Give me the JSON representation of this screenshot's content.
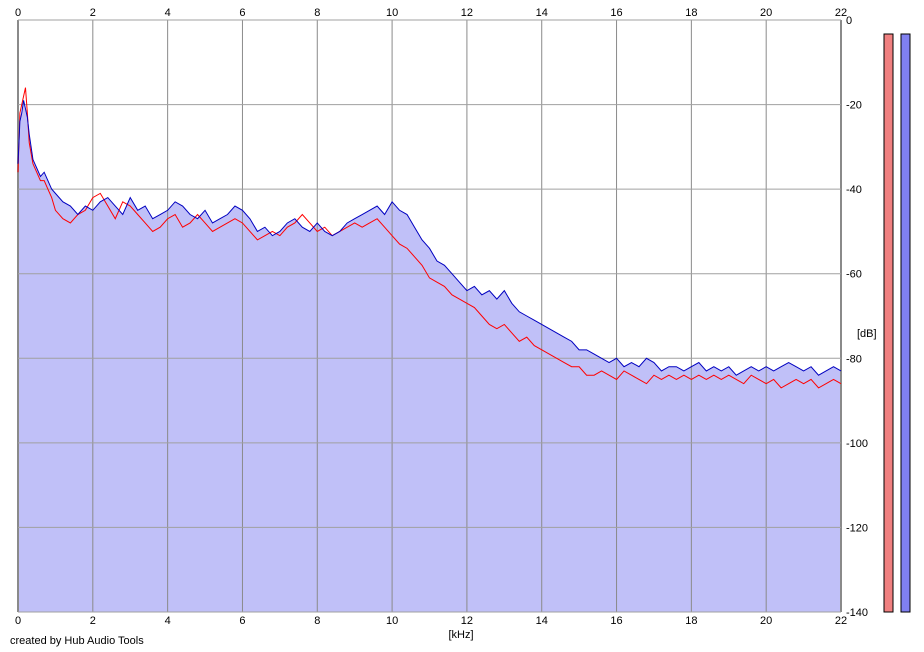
{
  "chart_data": {
    "type": "line",
    "title": "",
    "xlabel": "[kHz]",
    "ylabel": "[dB]",
    "xlim": [
      0,
      22
    ],
    "ylim": [
      -140,
      0
    ],
    "x_ticks": [
      0,
      2,
      4,
      6,
      8,
      10,
      12,
      14,
      16,
      18,
      20,
      22
    ],
    "y_ticks": [
      0,
      -20,
      -40,
      -60,
      -80,
      -100,
      -120,
      -140
    ],
    "grid": true,
    "fill_under": "#c0c0f8",
    "series": [
      {
        "color": "#0000c0",
        "x": [
          0,
          0.05,
          0.1,
          0.15,
          0.2,
          0.25,
          0.3,
          0.4,
          0.5,
          0.6,
          0.7,
          0.8,
          0.9,
          1.0,
          1.2,
          1.4,
          1.6,
          1.8,
          2.0,
          2.2,
          2.4,
          2.6,
          2.8,
          3.0,
          3.2,
          3.4,
          3.6,
          3.8,
          4.0,
          4.2,
          4.4,
          4.6,
          4.8,
          5.0,
          5.2,
          5.4,
          5.6,
          5.8,
          6.0,
          6.2,
          6.4,
          6.6,
          6.8,
          7.0,
          7.2,
          7.4,
          7.6,
          7.8,
          8.0,
          8.2,
          8.4,
          8.6,
          8.8,
          9.0,
          9.2,
          9.4,
          9.6,
          9.8,
          10.0,
          10.2,
          10.4,
          10.6,
          10.8,
          11.0,
          11.2,
          11.4,
          11.6,
          11.8,
          12.0,
          12.2,
          12.4,
          12.6,
          12.8,
          13.0,
          13.2,
          13.4,
          13.6,
          13.8,
          14.0,
          14.2,
          14.4,
          14.6,
          14.8,
          15.0,
          15.2,
          15.4,
          15.6,
          15.8,
          16.0,
          16.2,
          16.4,
          16.6,
          16.8,
          17.0,
          17.2,
          17.4,
          17.6,
          17.8,
          18.0,
          18.2,
          18.4,
          18.6,
          18.8,
          19.0,
          19.2,
          19.4,
          19.6,
          19.8,
          20.0,
          20.2,
          20.4,
          20.6,
          20.8,
          21.0,
          21.2,
          21.4,
          21.6,
          21.8,
          22.0
        ],
        "y": [
          -34,
          -24,
          -22,
          -19,
          -21,
          -23,
          -27,
          -33,
          -35,
          -37,
          -36,
          -38,
          -40,
          -41,
          -43,
          -44,
          -46,
          -44,
          -45,
          -43,
          -42,
          -44,
          -46,
          -42,
          -45,
          -44,
          -47,
          -46,
          -45,
          -43,
          -44,
          -46,
          -47,
          -45,
          -48,
          -47,
          -46,
          -44,
          -45,
          -47,
          -50,
          -49,
          -51,
          -50,
          -48,
          -47,
          -49,
          -50,
          -48,
          -50,
          -51,
          -50,
          -48,
          -47,
          -46,
          -45,
          -44,
          -46,
          -43,
          -45,
          -46,
          -49,
          -52,
          -54,
          -57,
          -58,
          -60,
          -62,
          -64,
          -63,
          -65,
          -64,
          -66,
          -64,
          -67,
          -69,
          -70,
          -71,
          -72,
          -73,
          -74,
          -75,
          -76,
          -78,
          -78,
          -79,
          -80,
          -81,
          -80,
          -82,
          -81,
          -82,
          -80,
          -81,
          -83,
          -82,
          -82,
          -83,
          -82,
          -81,
          -83,
          -82,
          -83,
          -82,
          -84,
          -83,
          -82,
          -83,
          -82,
          -83,
          -82,
          -81,
          -82,
          -83,
          -82,
          -84,
          -83,
          -82,
          -83
        ]
      },
      {
        "color": "#ff0000",
        "x": [
          0,
          0.05,
          0.1,
          0.15,
          0.2,
          0.25,
          0.3,
          0.4,
          0.5,
          0.6,
          0.7,
          0.8,
          0.9,
          1.0,
          1.2,
          1.4,
          1.6,
          1.8,
          2.0,
          2.2,
          2.4,
          2.6,
          2.8,
          3.0,
          3.2,
          3.4,
          3.6,
          3.8,
          4.0,
          4.2,
          4.4,
          4.6,
          4.8,
          5.0,
          5.2,
          5.4,
          5.6,
          5.8,
          6.0,
          6.2,
          6.4,
          6.6,
          6.8,
          7.0,
          7.2,
          7.4,
          7.6,
          7.8,
          8.0,
          8.2,
          8.4,
          8.6,
          8.8,
          9.0,
          9.2,
          9.4,
          9.6,
          9.8,
          10.0,
          10.2,
          10.4,
          10.6,
          10.8,
          11.0,
          11.2,
          11.4,
          11.6,
          11.8,
          12.0,
          12.2,
          12.4,
          12.6,
          12.8,
          13.0,
          13.2,
          13.4,
          13.6,
          13.8,
          14.0,
          14.2,
          14.4,
          14.6,
          14.8,
          15.0,
          15.2,
          15.4,
          15.6,
          15.8,
          16.0,
          16.2,
          16.4,
          16.6,
          16.8,
          17.0,
          17.2,
          17.4,
          17.6,
          17.8,
          18.0,
          18.2,
          18.4,
          18.6,
          18.8,
          19.0,
          19.2,
          19.4,
          19.6,
          19.8,
          20.0,
          20.2,
          20.4,
          20.6,
          20.8,
          21.0,
          21.2,
          21.4,
          21.6,
          21.8,
          22.0
        ],
        "y": [
          -36,
          -22,
          -20,
          -18,
          -16,
          -22,
          -29,
          -34,
          -36,
          -38,
          -38,
          -40,
          -42,
          -45,
          -47,
          -48,
          -46,
          -45,
          -42,
          -41,
          -44,
          -47,
          -43,
          -44,
          -46,
          -48,
          -50,
          -49,
          -47,
          -46,
          -49,
          -48,
          -46,
          -48,
          -50,
          -49,
          -48,
          -47,
          -48,
          -50,
          -52,
          -51,
          -50,
          -51,
          -49,
          -48,
          -46,
          -48,
          -50,
          -49,
          -51,
          -50,
          -49,
          -48,
          -49,
          -48,
          -47,
          -49,
          -51,
          -53,
          -54,
          -56,
          -58,
          -61,
          -62,
          -63,
          -65,
          -66,
          -67,
          -68,
          -70,
          -72,
          -73,
          -72,
          -74,
          -76,
          -75,
          -77,
          -78,
          -79,
          -80,
          -81,
          -82,
          -82,
          -84,
          -84,
          -83,
          -84,
          -85,
          -83,
          -84,
          -85,
          -86,
          -84,
          -85,
          -84,
          -85,
          -84,
          -85,
          -84,
          -85,
          -84,
          -85,
          -84,
          -85,
          -86,
          -84,
          -85,
          -86,
          -85,
          -87,
          -86,
          -85,
          -86,
          -85,
          -87,
          -86,
          -85,
          -86
        ]
      }
    ],
    "level_meters": [
      {
        "color": "#f08080",
        "level": 1.0
      },
      {
        "color": "#8080f0",
        "level": 1.0
      }
    ]
  },
  "credit": "created by Hub Audio Tools"
}
